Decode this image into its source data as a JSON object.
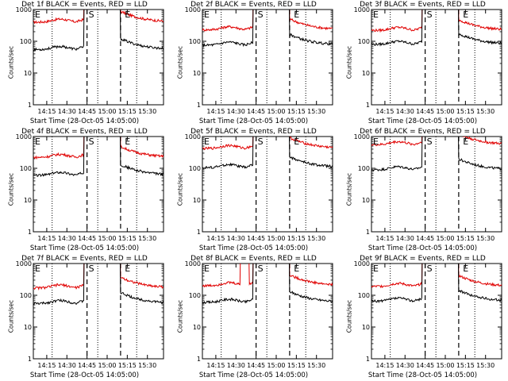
{
  "chart_data": {
    "type": "line",
    "x_axis_label": "Start Time (28-Oct-05 14:05:00)",
    "x_ticks": [
      "14:15",
      "14:30",
      "14:45",
      "15:00",
      "15:15",
      "15:30"
    ],
    "x_range": [
      "14:05",
      "15:42"
    ],
    "y_axis_label": "Counts/sec",
    "y_scale": "log",
    "y_range": [
      1,
      1000
    ],
    "y_ticks": [
      "1",
      "10",
      "100",
      "1000"
    ],
    "series_legend": "BLACK = Events, RED = LLD",
    "colors": {
      "events": "#000000",
      "lld": "#e00000"
    },
    "markers": {
      "E_left": {
        "label": "E",
        "time": "14:05"
      },
      "S": {
        "label": "S",
        "time": "14:45"
      },
      "E_right": {
        "label": "E",
        "time": "15:12"
      }
    },
    "dotted_lines": [
      "14:19",
      "14:53",
      "15:22"
    ],
    "dashed_lines": [
      "14:45",
      "15:10"
    ],
    "panels": [
      {
        "id": "1f",
        "title": "Det 1f BLACK = Events, RED = LLD",
        "events_level": 55,
        "lld_level": 400,
        "peak_shape": "spike"
      },
      {
        "id": "2f",
        "title": "Det 2f BLACK = Events, RED = LLD",
        "events_level": 75,
        "lld_level": 230,
        "peak_shape": "spike"
      },
      {
        "id": "3f",
        "title": "Det 3f BLACK = Events, RED = LLD",
        "events_level": 80,
        "lld_level": 220,
        "peak_shape": "spike"
      },
      {
        "id": "4f",
        "title": "Det 4f BLACK = Events, RED = LLD",
        "events_level": 60,
        "lld_level": 220,
        "peak_shape": "spike"
      },
      {
        "id": "5f",
        "title": "Det 5f BLACK = Events, RED = LLD",
        "events_level": 105,
        "lld_level": 420,
        "peak_shape": "plateau"
      },
      {
        "id": "6f",
        "title": "Det 6f BLACK = Events, RED = LLD",
        "events_level": 90,
        "lld_level": 550,
        "peak_shape": "spike"
      },
      {
        "id": "7f",
        "title": "Det 7f BLACK = Events, RED = LLD",
        "events_level": 55,
        "lld_level": 170,
        "peak_shape": "spike"
      },
      {
        "id": "8f",
        "title": "Det 8f BLACK = Events, RED = LLD",
        "events_level": 60,
        "lld_level": 200,
        "peak_shape": "bursts"
      },
      {
        "id": "9f",
        "title": "Det 9f BLACK = Events, RED = LLD",
        "events_level": 65,
        "lld_level": 190,
        "peak_shape": "spike"
      }
    ]
  }
}
